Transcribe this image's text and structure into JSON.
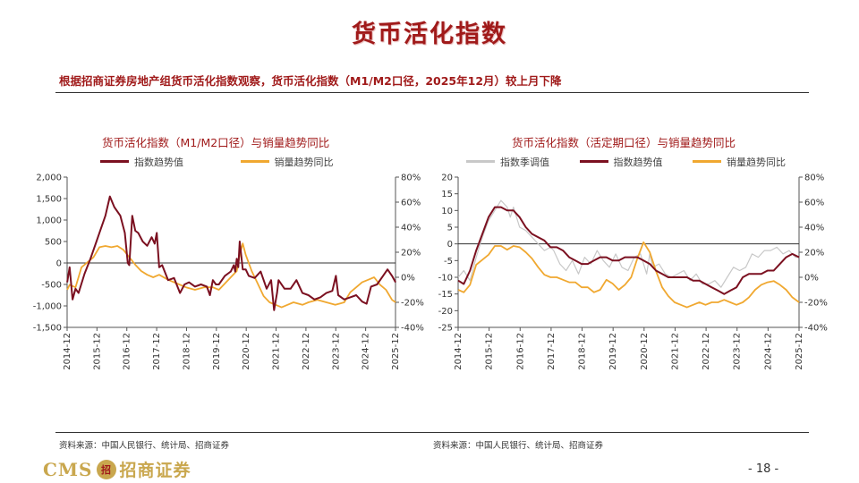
{
  "page": {
    "title": "货币活化指数",
    "subtitle": "根据招商证券房地产组货币活化指数观察，货币活化指数（M1/M2口径，2025年12月）较上月下降",
    "page_number": "- 18 -",
    "logo": {
      "cms": "CMS",
      "badge": "招",
      "name": "招商证券"
    },
    "colors": {
      "accent": "#a01a1a",
      "index_line": "#7b1020",
      "sales_line": "#f0a830",
      "seasonal_line": "#c8c8c8",
      "logo_gold": "#c9a74e"
    }
  },
  "charts": {
    "left": {
      "title": "货币活化指数（M1/M2口径）与销量趋势同比",
      "legend": [
        "指数趋势值",
        "销量趋势同比"
      ],
      "source": "资料来源：中国人民银行、统计局、招商证券"
    },
    "right": {
      "title": "货币活化指数（活定期口径）与销量趋势同比",
      "legend": [
        "指数季调值",
        "指数趋势值",
        "销量趋势同比"
      ],
      "source": "资料来源：中国人民银行、统计局、招商证券"
    }
  },
  "chart_data": [
    {
      "type": "line",
      "title": "货币活化指数（M1/M2口径）与销量趋势同比",
      "x_labels": [
        "2014-12",
        "2015-12",
        "2016-12",
        "2017-12",
        "2018-12",
        "2019-12",
        "2020-12",
        "2021-12",
        "2022-12",
        "2023-12",
        "2024-12",
        "2025-12"
      ],
      "x_range": [
        2014.917,
        2025.917
      ],
      "y_left": {
        "min": -1500,
        "max": 2000,
        "step": 500,
        "tick_labels": [
          "-1,500",
          "-1,000",
          "-500",
          "0",
          "500",
          "1,000",
          "1,500",
          "2,000"
        ]
      },
      "y_right": {
        "min": -40,
        "max": 80,
        "step": 20,
        "tick_labels": [
          "-40%",
          "-20%",
          "0%",
          "20%",
          "40%",
          "60%",
          "80%"
        ]
      },
      "series": [
        {
          "name": "指数趋势值",
          "axis": "left",
          "x": [
            2014.92,
            2015.0,
            2015.1,
            2015.2,
            2015.3,
            2015.5,
            2015.7,
            2015.9,
            2016.0,
            2016.2,
            2016.35,
            2016.5,
            2016.7,
            2016.85,
            2016.95,
            2017.0,
            2017.1,
            2017.2,
            2017.3,
            2017.45,
            2017.6,
            2017.75,
            2017.85,
            2017.92,
            2018.0,
            2018.1,
            2018.3,
            2018.5,
            2018.7,
            2018.85,
            2019.0,
            2019.2,
            2019.4,
            2019.6,
            2019.7,
            2019.8,
            2019.9,
            2020.0,
            2020.2,
            2020.4,
            2020.5,
            2020.55,
            2020.6,
            2020.65,
            2020.7,
            2020.8,
            2020.9,
            2021.0,
            2021.2,
            2021.4,
            2021.6,
            2021.75,
            2021.85,
            2021.95,
            2022.0,
            2022.2,
            2022.4,
            2022.6,
            2022.8,
            2023.0,
            2023.2,
            2023.4,
            2023.6,
            2023.8,
            2023.92,
            2024.0,
            2024.2,
            2024.4,
            2024.6,
            2024.8,
            2024.95,
            2025.1,
            2025.3,
            2025.5,
            2025.65,
            2025.8,
            2025.92
          ],
          "y": [
            -450,
            -100,
            -850,
            -600,
            -700,
            -250,
            100,
            500,
            700,
            1100,
            1550,
            1300,
            1100,
            700,
            0,
            -50,
            1100,
            750,
            700,
            500,
            400,
            600,
            450,
            700,
            -100,
            -50,
            -400,
            -350,
            -700,
            -500,
            -450,
            -550,
            -500,
            -550,
            -750,
            -400,
            -500,
            -500,
            -300,
            -200,
            -50,
            -200,
            100,
            -100,
            500,
            -150,
            -150,
            -300,
            -350,
            -200,
            -600,
            -400,
            -1100,
            -700,
            -400,
            -600,
            -600,
            -400,
            -700,
            -750,
            -850,
            -800,
            -700,
            -650,
            -300,
            -750,
            -850,
            -800,
            -750,
            -900,
            -950,
            -550,
            -500,
            -300,
            -150,
            -300,
            -450
          ]
        },
        {
          "name": "销量趋势同比",
          "axis": "right",
          "x": [
            2014.92,
            2015.0,
            2015.2,
            2015.4,
            2015.6,
            2015.8,
            2016.0,
            2016.2,
            2016.4,
            2016.6,
            2016.8,
            2017.0,
            2017.2,
            2017.4,
            2017.6,
            2017.8,
            2018.0,
            2018.3,
            2018.6,
            2018.9,
            2019.2,
            2019.5,
            2019.8,
            2020.0,
            2020.2,
            2020.4,
            2020.6,
            2020.7,
            2020.8,
            2020.9,
            2021.1,
            2021.3,
            2021.5,
            2021.7,
            2021.9,
            2022.1,
            2022.3,
            2022.5,
            2022.8,
            2023.0,
            2023.3,
            2023.6,
            2023.9,
            2024.2,
            2024.4,
            2024.6,
            2024.8,
            2025.0,
            2025.2,
            2025.4,
            2025.6,
            2025.8,
            2025.92
          ],
          "y": [
            -10,
            -6,
            -8,
            8,
            12,
            16,
            24,
            25,
            24,
            25,
            22,
            16,
            10,
            5,
            2,
            0,
            2,
            -2,
            -5,
            -8,
            -10,
            -8,
            -8,
            -10,
            -5,
            0,
            5,
            18,
            27,
            18,
            5,
            -5,
            -15,
            -20,
            -22,
            -24,
            -22,
            -20,
            -22,
            -20,
            -18,
            -20,
            -22,
            -20,
            -12,
            -8,
            -4,
            -2,
            0,
            -6,
            -10,
            -18,
            -20
          ]
        }
      ]
    },
    {
      "type": "line",
      "title": "货币活化指数（活定期口径）与销量趋势同比",
      "x_labels": [
        "2014-12",
        "2015-12",
        "2016-12",
        "2017-12",
        "2018-12",
        "2019-12",
        "2020-12",
        "2021-12",
        "2022-12",
        "2023-12",
        "2024-12",
        "2025-12"
      ],
      "x_range": [
        2014.917,
        2025.917
      ],
      "y_left": {
        "min": -25,
        "max": 20,
        "step": 5,
        "tick_labels": [
          "-25",
          "-20",
          "-15",
          "-10",
          "-5",
          "0",
          "5",
          "10",
          "15",
          "20"
        ]
      },
      "y_right": {
        "min": -40,
        "max": 80,
        "step": 20,
        "tick_labels": [
          "-40%",
          "-20%",
          "0%",
          "20%",
          "40%",
          "60%",
          "80%"
        ]
      },
      "series": [
        {
          "name": "指数季调值",
          "axis": "left",
          "x": [
            2014.92,
            2015.1,
            2015.3,
            2015.5,
            2015.7,
            2015.9,
            2016.1,
            2016.3,
            2016.5,
            2016.6,
            2016.7,
            2016.9,
            2017.1,
            2017.3,
            2017.5,
            2017.7,
            2017.9,
            2018.0,
            2018.2,
            2018.4,
            2018.6,
            2018.8,
            2019.0,
            2019.2,
            2019.4,
            2019.6,
            2019.8,
            2020.0,
            2020.2,
            2020.4,
            2020.6,
            2020.8,
            2021.0,
            2021.1,
            2021.2,
            2021.4,
            2021.6,
            2021.8,
            2022.0,
            2022.2,
            2022.4,
            2022.6,
            2022.8,
            2023.0,
            2023.2,
            2023.4,
            2023.6,
            2023.8,
            2024.0,
            2024.2,
            2024.4,
            2024.6,
            2024.8,
            2025.0,
            2025.2,
            2025.4,
            2025.6,
            2025.8,
            2025.92
          ],
          "y": [
            -10,
            -8,
            -11,
            -4,
            2,
            7,
            10,
            13,
            11,
            8,
            11,
            5,
            4,
            2,
            0,
            -2,
            -1,
            -2,
            -6,
            -8,
            -5,
            -9,
            -4,
            -6,
            -2,
            -5,
            -7,
            -3,
            -7,
            -8,
            -4,
            -3,
            -9,
            -3,
            -7,
            -6,
            -9,
            -10,
            -9,
            -8,
            -11,
            -9,
            -12,
            -12,
            -11,
            -13,
            -10,
            -7,
            -8,
            -7,
            -3,
            -4,
            -2,
            -2,
            -1,
            -3,
            -2,
            -4,
            -4
          ]
        },
        {
          "name": "指数趋势值",
          "axis": "left",
          "x": [
            2014.92,
            2015.1,
            2015.3,
            2015.5,
            2015.7,
            2015.9,
            2016.1,
            2016.3,
            2016.5,
            2016.7,
            2016.9,
            2017.1,
            2017.3,
            2017.5,
            2017.7,
            2017.9,
            2018.1,
            2018.3,
            2018.5,
            2018.7,
            2018.9,
            2019.1,
            2019.3,
            2019.5,
            2019.7,
            2019.9,
            2020.1,
            2020.3,
            2020.5,
            2020.7,
            2020.9,
            2021.1,
            2021.3,
            2021.5,
            2021.7,
            2021.9,
            2022.1,
            2022.3,
            2022.5,
            2022.7,
            2022.9,
            2023.1,
            2023.3,
            2023.5,
            2023.7,
            2023.9,
            2024.1,
            2024.3,
            2024.5,
            2024.7,
            2024.9,
            2025.1,
            2025.3,
            2025.5,
            2025.7,
            2025.92
          ],
          "y": [
            -11,
            -12,
            -8,
            -2,
            3,
            8,
            11,
            11,
            10,
            10,
            8,
            5,
            3,
            2,
            1,
            -1,
            -1,
            -2,
            -4,
            -5,
            -6,
            -6,
            -5,
            -4,
            -4,
            -5,
            -5,
            -4,
            -4,
            -4,
            -5,
            -6,
            -8,
            -9,
            -10,
            -10,
            -10,
            -10,
            -11,
            -11,
            -12,
            -13,
            -14,
            -15,
            -14,
            -13,
            -10,
            -9,
            -9,
            -9,
            -8,
            -8,
            -6,
            -4,
            -3,
            -4
          ]
        },
        {
          "name": "销量趋势同比",
          "axis": "right",
          "x": [
            2014.92,
            2015.1,
            2015.3,
            2015.5,
            2015.7,
            2015.9,
            2016.1,
            2016.3,
            2016.5,
            2016.7,
            2016.9,
            2017.1,
            2017.3,
            2017.5,
            2017.7,
            2017.9,
            2018.1,
            2018.3,
            2018.5,
            2018.7,
            2018.9,
            2019.1,
            2019.3,
            2019.5,
            2019.7,
            2019.9,
            2020.1,
            2020.3,
            2020.5,
            2020.7,
            2020.9,
            2021.1,
            2021.3,
            2021.5,
            2021.7,
            2021.9,
            2022.1,
            2022.3,
            2022.5,
            2022.7,
            2022.9,
            2023.1,
            2023.3,
            2023.5,
            2023.7,
            2023.9,
            2024.1,
            2024.3,
            2024.5,
            2024.7,
            2024.9,
            2025.1,
            2025.3,
            2025.5,
            2025.7,
            2025.92
          ],
          "y": [
            -10,
            -12,
            -6,
            10,
            14,
            18,
            25,
            25,
            22,
            25,
            24,
            20,
            15,
            8,
            2,
            0,
            0,
            -2,
            -4,
            -4,
            -8,
            -8,
            -12,
            -10,
            -2,
            -5,
            -10,
            -6,
            0,
            15,
            28,
            20,
            5,
            -8,
            -15,
            -20,
            -22,
            -24,
            -22,
            -20,
            -22,
            -20,
            -20,
            -18,
            -20,
            -22,
            -20,
            -16,
            -10,
            -6,
            -4,
            -3,
            -6,
            -10,
            -16,
            -20
          ]
        }
      ]
    }
  ]
}
